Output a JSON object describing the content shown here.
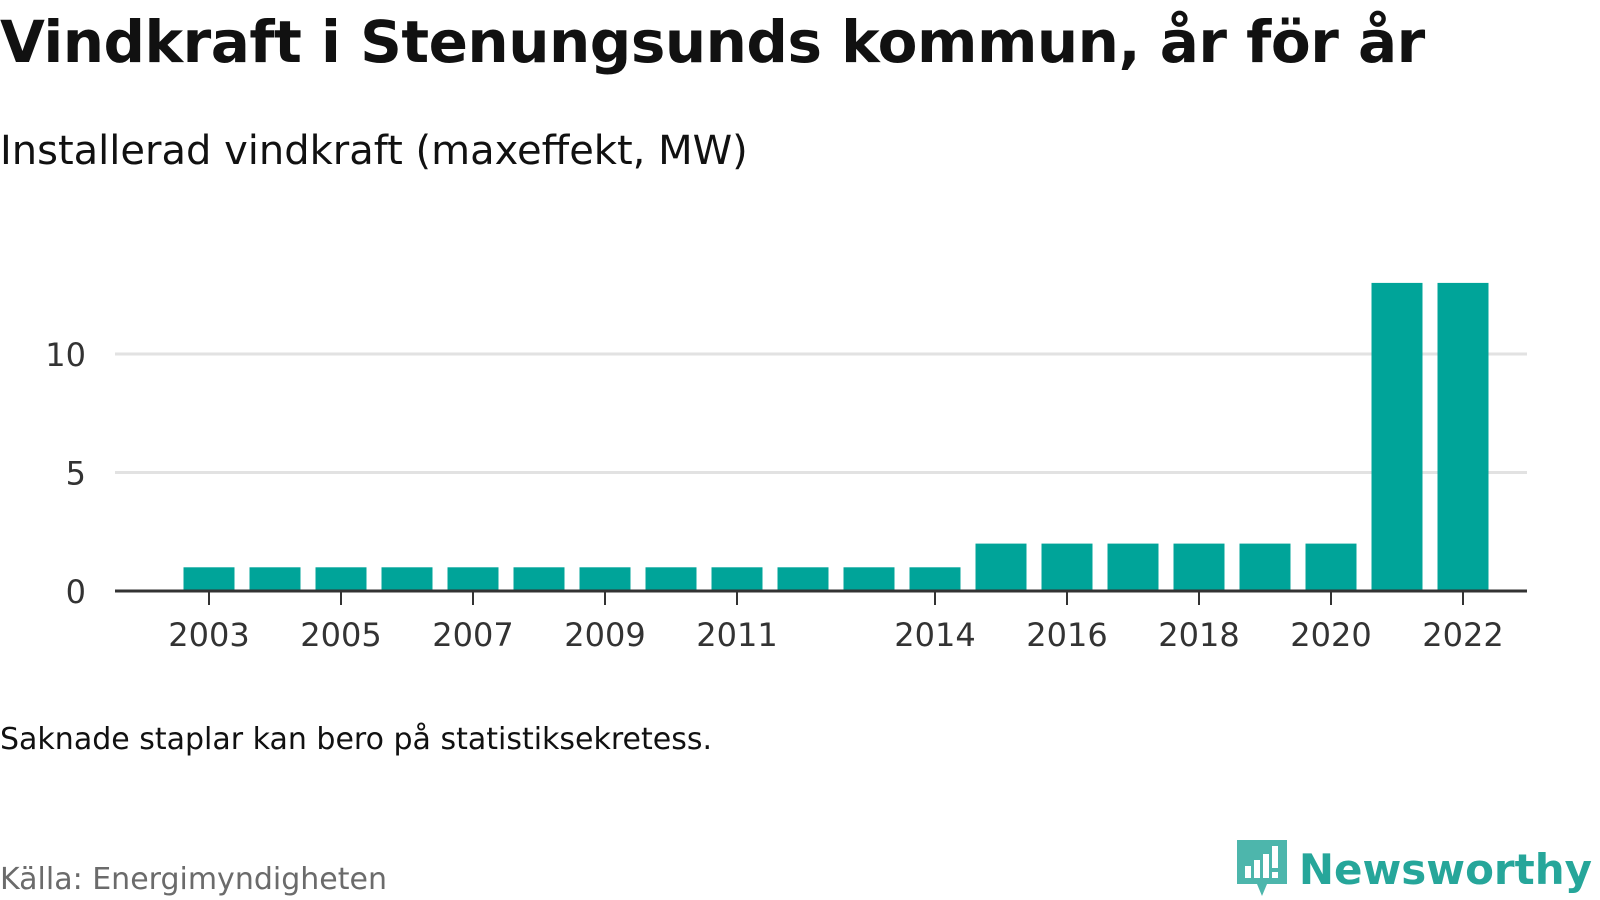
{
  "title": "Vindkraft i Stenungsunds kommun, år för år",
  "subtitle": "Installerad vindkraft (maxeffekt, MW)",
  "note": "Saknade staplar kan bero på statistiksekretess.",
  "source": "Källa: Energimyndigheten",
  "brand": {
    "name": "Newsworthy",
    "icon": "newsworthy-logo-icon",
    "color": "#26a69a"
  },
  "colors": {
    "bar": "#00a499",
    "grid": "#e2e2e2",
    "axis": "#333333"
  },
  "chart_data": {
    "type": "bar",
    "categories": [
      2003,
      2004,
      2005,
      2006,
      2007,
      2008,
      2009,
      2010,
      2011,
      2012,
      2013,
      2014,
      2015,
      2016,
      2017,
      2018,
      2019,
      2020,
      2021,
      2022
    ],
    "values": [
      1,
      1,
      1,
      1,
      1,
      1,
      1,
      1,
      1,
      1,
      1,
      1,
      2,
      2,
      2,
      2,
      2,
      2,
      13,
      13
    ],
    "x_tick_labels": [
      2003,
      2005,
      2007,
      2009,
      2011,
      2014,
      2016,
      2018,
      2020,
      2022
    ],
    "y_ticks": [
      0,
      5,
      10
    ],
    "ylim": [
      0,
      13
    ],
    "grid": true,
    "xlabel": "",
    "ylabel": ""
  }
}
